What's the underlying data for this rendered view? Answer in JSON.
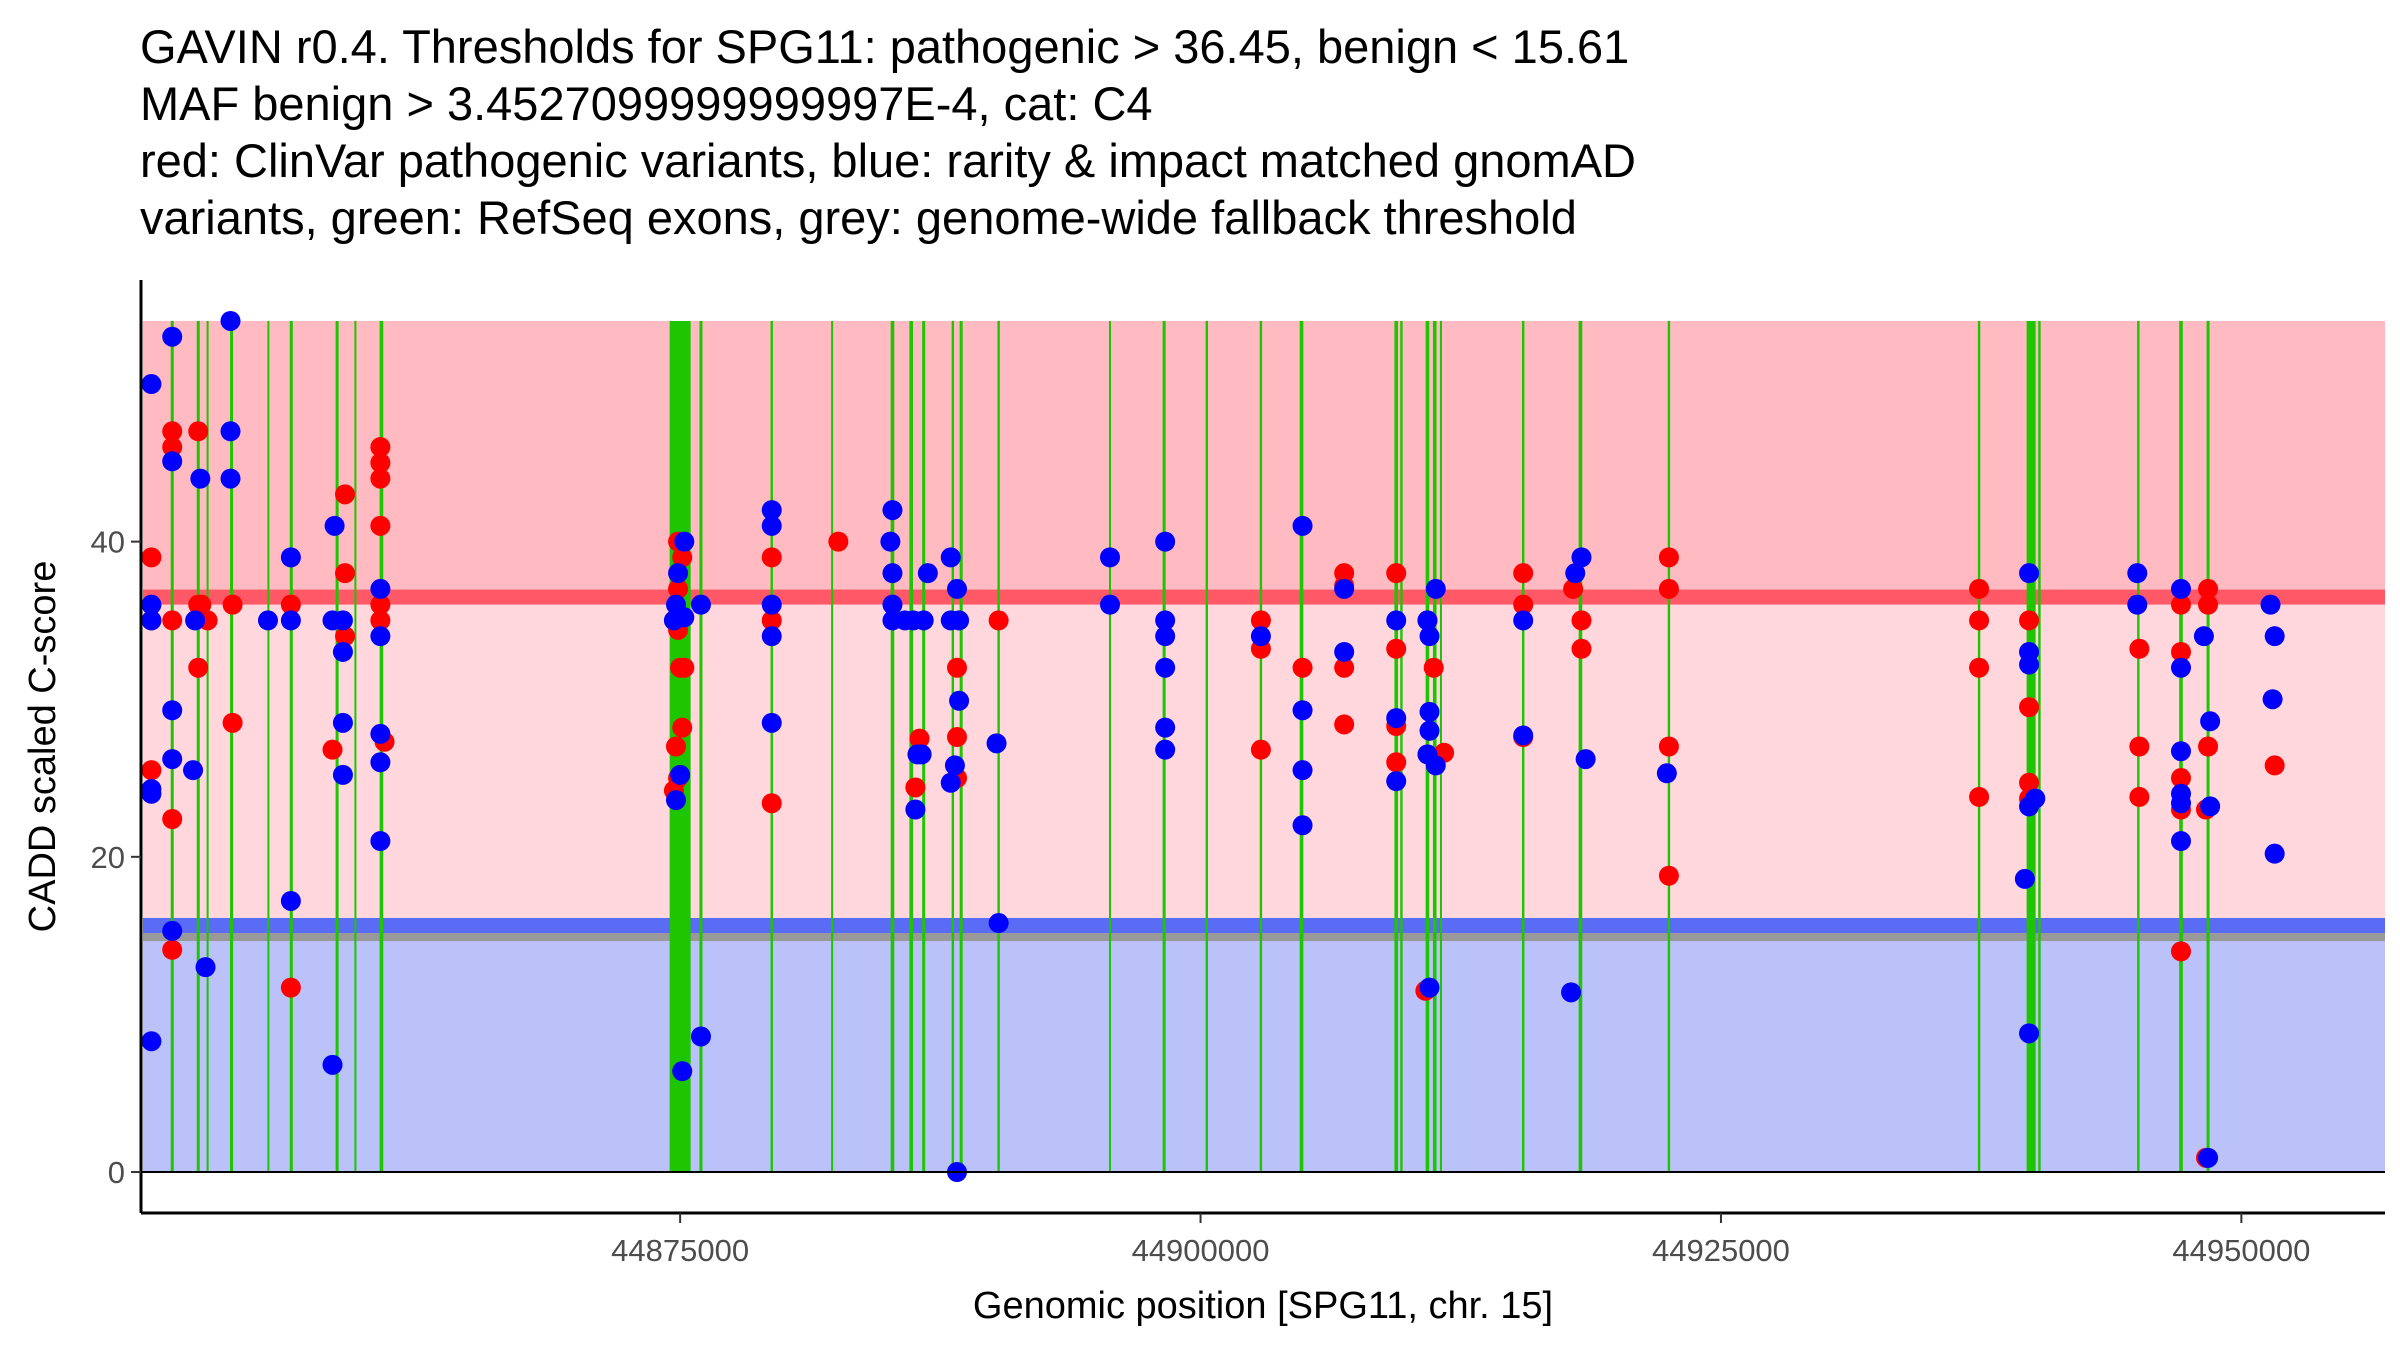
{
  "chart_data": {
    "type": "scatter",
    "title_lines": [
      "GAVIN r0.4. Thresholds for SPG11: pathogenic > 36.45, benign < 15.61",
      "MAF benign > 3.4527099999999997E-4, cat: C4",
      "red: ClinVar pathogenic variants, blue: rarity & impact matched gnomAD",
      "variants, green: RefSeq exons, grey: genome-wide fallback threshold"
    ],
    "xlabel": "Genomic position [SPG11, chr. 15]",
    "ylabel": "CADD scaled C-score",
    "xlim": [
      44849100,
      44956900
    ],
    "ylim": [
      -2.6,
      56.6
    ],
    "x_ticks": [
      44875000,
      44900000,
      44925000,
      44950000
    ],
    "x_tick_labels": [
      "44875000",
      "44900000",
      "44925000",
      "44950000"
    ],
    "y_ticks": [
      0,
      20,
      40
    ],
    "y_tick_labels": [
      "0",
      "20",
      "40"
    ],
    "grid": false,
    "legend": "none",
    "thresholds": {
      "pathogenic": 36.45,
      "benign": 15.61,
      "genome_wide_fallback": 14.8,
      "pathogenic_zone_top": 54.0
    },
    "colors": {
      "pathogenic_zone": "#FFBBC1",
      "pathogenic_line": "#FF5867",
      "middle_zone": "#FFD7DC",
      "benign_line": "#5A6BF5",
      "fallback_line": "#999999",
      "benign_zone": "#BBC1F9",
      "exon": "#1DC600",
      "clinvar": "#FF0000",
      "gnomad": "#0000FF"
    },
    "exons": [
      {
        "pos": 44850600,
        "w": 1
      },
      {
        "pos": 44851850,
        "w": 1
      },
      {
        "pos": 44852300,
        "w": 0.6
      },
      {
        "pos": 44853450,
        "w": 1
      },
      {
        "pos": 44855220,
        "w": 0.5
      },
      {
        "pos": 44856320,
        "w": 1
      },
      {
        "pos": 44858520,
        "w": 1
      },
      {
        "pos": 44859400,
        "w": 0.6
      },
      {
        "pos": 44860650,
        "w": 1.2
      },
      {
        "pos": 44875000,
        "w": 7
      },
      {
        "pos": 44876000,
        "w": 1
      },
      {
        "pos": 44879400,
        "w": 0.8
      },
      {
        "pos": 44882300,
        "w": 0.6
      },
      {
        "pos": 44885200,
        "w": 1.2
      },
      {
        "pos": 44886100,
        "w": 1.2
      },
      {
        "pos": 44886700,
        "w": 1
      },
      {
        "pos": 44888100,
        "w": 0.8
      },
      {
        "pos": 44888500,
        "w": 1
      },
      {
        "pos": 44890300,
        "w": 0.8
      },
      {
        "pos": 44895650,
        "w": 0.6
      },
      {
        "pos": 44898250,
        "w": 1
      },
      {
        "pos": 44900300,
        "w": 0.8
      },
      {
        "pos": 44902900,
        "w": 0.8
      },
      {
        "pos": 44904850,
        "w": 1.2
      },
      {
        "pos": 44909400,
        "w": 1.2
      },
      {
        "pos": 44909650,
        "w": 0.8
      },
      {
        "pos": 44910900,
        "w": 1.2
      },
      {
        "pos": 44911250,
        "w": 1.2
      },
      {
        "pos": 44911550,
        "w": 0.5
      },
      {
        "pos": 44915500,
        "w": 0.8
      },
      {
        "pos": 44918250,
        "w": 1.2
      },
      {
        "pos": 44922500,
        "w": 0.8
      },
      {
        "pos": 44937400,
        "w": 0.8
      },
      {
        "pos": 44939900,
        "w": 3
      },
      {
        "pos": 44940300,
        "w": 0.8
      },
      {
        "pos": 44945050,
        "w": 0.8
      },
      {
        "pos": 44947100,
        "w": 1.2
      },
      {
        "pos": 44948400,
        "w": 1
      }
    ],
    "series": [
      {
        "name": "ClinVar pathogenic variants",
        "color": "#FF0000",
        "points": [
          [
            44849600,
            39
          ],
          [
            44849600,
            35
          ],
          [
            44849600,
            25.5
          ],
          [
            44850600,
            47
          ],
          [
            44850600,
            46
          ],
          [
            44850600,
            35
          ],
          [
            44850600,
            22.4
          ],
          [
            44850600,
            14.1
          ],
          [
            44851850,
            47
          ],
          [
            44851850,
            36
          ],
          [
            44851850,
            32
          ],
          [
            44852000,
            36
          ],
          [
            44852300,
            35
          ],
          [
            44853500,
            36
          ],
          [
            44853500,
            28.5
          ],
          [
            44856300,
            36
          ],
          [
            44856300,
            11.7
          ],
          [
            44858300,
            26.8
          ],
          [
            44858900,
            43
          ],
          [
            44858900,
            38
          ],
          [
            44858900,
            34
          ],
          [
            44860600,
            46
          ],
          [
            44860600,
            45
          ],
          [
            44860600,
            44
          ],
          [
            44860600,
            41
          ],
          [
            44860600,
            36
          ],
          [
            44860600,
            35
          ],
          [
            44860800,
            27.3
          ],
          [
            44874900,
            40
          ],
          [
            44875100,
            39
          ],
          [
            44874900,
            37
          ],
          [
            44874800,
            35
          ],
          [
            44874900,
            34.4
          ],
          [
            44875000,
            32
          ],
          [
            44875100,
            28.2
          ],
          [
            44874800,
            27
          ],
          [
            44874900,
            25
          ],
          [
            44874700,
            24.2
          ],
          [
            44875200,
            32
          ],
          [
            44879400,
            39
          ],
          [
            44879400,
            35
          ],
          [
            44879400,
            23.4
          ],
          [
            44882600,
            40
          ],
          [
            44886500,
            27.5
          ],
          [
            44886300,
            24.4
          ],
          [
            44888300,
            32
          ],
          [
            44888300,
            27.6
          ],
          [
            44888300,
            25
          ],
          [
            44890300,
            35
          ],
          [
            44902900,
            35
          ],
          [
            44902900,
            33.2
          ],
          [
            44902900,
            26.8
          ],
          [
            44904900,
            32
          ],
          [
            44906900,
            38
          ],
          [
            44906900,
            37.2
          ],
          [
            44906900,
            32
          ],
          [
            44906900,
            28.4
          ],
          [
            44909400,
            38
          ],
          [
            44909400,
            33.2
          ],
          [
            44909400,
            28.3
          ],
          [
            44909400,
            26
          ],
          [
            44910900,
            35
          ],
          [
            44911200,
            32
          ],
          [
            44911300,
            26.2
          ],
          [
            44911700,
            26.6
          ],
          [
            44910800,
            11.5
          ],
          [
            44915500,
            38
          ],
          [
            44915500,
            36
          ],
          [
            44915500,
            27.6
          ],
          [
            44917900,
            37
          ],
          [
            44918300,
            35
          ],
          [
            44918300,
            33.2
          ],
          [
            44922500,
            39
          ],
          [
            44922500,
            37
          ],
          [
            44922500,
            27
          ],
          [
            44922500,
            18.8
          ],
          [
            44937400,
            37
          ],
          [
            44937400,
            35
          ],
          [
            44937400,
            32
          ],
          [
            44937400,
            23.8
          ],
          [
            44939800,
            35
          ],
          [
            44939800,
            29.5
          ],
          [
            44939800,
            24.7
          ],
          [
            44939800,
            23.7
          ],
          [
            44945100,
            33.2
          ],
          [
            44945100,
            27
          ],
          [
            44945100,
            23.8
          ],
          [
            44947100,
            36
          ],
          [
            44947100,
            33
          ],
          [
            44947100,
            25
          ],
          [
            44947100,
            23
          ],
          [
            44947100,
            14
          ],
          [
            44948400,
            37
          ],
          [
            44948400,
            36
          ],
          [
            44948400,
            27
          ],
          [
            44948300,
            23
          ],
          [
            44948300,
            0.9
          ],
          [
            44951600,
            25.8
          ]
        ]
      },
      {
        "name": "rarity & impact matched gnomAD variants",
        "color": "#0000FF",
        "points": [
          [
            44849600,
            50
          ],
          [
            44849600,
            36
          ],
          [
            44849600,
            35
          ],
          [
            44849600,
            24.3
          ],
          [
            44849600,
            24
          ],
          [
            44849600,
            8.3
          ],
          [
            44850600,
            53
          ],
          [
            44850600,
            45.1
          ],
          [
            44850600,
            29.3
          ],
          [
            44850600,
            26.2
          ],
          [
            44850600,
            15.3
          ],
          [
            44851700,
            35
          ],
          [
            44851600,
            25.5
          ],
          [
            44851950,
            44
          ],
          [
            44852200,
            13
          ],
          [
            44853400,
            54
          ],
          [
            44853400,
            47
          ],
          [
            44853400,
            44
          ],
          [
            44855200,
            35
          ],
          [
            44856300,
            39
          ],
          [
            44856300,
            35
          ],
          [
            44856300,
            17.2
          ],
          [
            44858400,
            41
          ],
          [
            44858300,
            35
          ],
          [
            44858300,
            6.8
          ],
          [
            44858800,
            35
          ],
          [
            44858800,
            33
          ],
          [
            44858800,
            28.5
          ],
          [
            44858800,
            25.2
          ],
          [
            44860600,
            37
          ],
          [
            44860600,
            34
          ],
          [
            44860600,
            27.8
          ],
          [
            44860600,
            26
          ],
          [
            44860600,
            21
          ],
          [
            44874800,
            36
          ],
          [
            44874700,
            35
          ],
          [
            44874900,
            38
          ],
          [
            44875200,
            40
          ],
          [
            44875200,
            35.2
          ],
          [
            44875000,
            25.2
          ],
          [
            44874800,
            23.6
          ],
          [
            44875100,
            6.4
          ],
          [
            44876000,
            36
          ],
          [
            44876000,
            8.6
          ],
          [
            44879400,
            42
          ],
          [
            44879400,
            41
          ],
          [
            44879400,
            36
          ],
          [
            44879400,
            34
          ],
          [
            44879400,
            28.5
          ],
          [
            44885200,
            42
          ],
          [
            44885100,
            40
          ],
          [
            44885200,
            38
          ],
          [
            44885200,
            36
          ],
          [
            44885200,
            35
          ],
          [
            44885800,
            35
          ],
          [
            44886200,
            35
          ],
          [
            44886400,
            26.5
          ],
          [
            44886600,
            26.5
          ],
          [
            44886300,
            23
          ],
          [
            44886700,
            35
          ],
          [
            44886900,
            38
          ],
          [
            44888000,
            39
          ],
          [
            44888300,
            37
          ],
          [
            44888000,
            35
          ],
          [
            44888400,
            35
          ],
          [
            44888400,
            29.9
          ],
          [
            44888000,
            24.7
          ],
          [
            44888200,
            25.8
          ],
          [
            44888300,
            0
          ],
          [
            44890200,
            27.2
          ],
          [
            44890300,
            15.8
          ],
          [
            44895650,
            39
          ],
          [
            44895650,
            36
          ],
          [
            44898300,
            40
          ],
          [
            44898300,
            35
          ],
          [
            44898300,
            34
          ],
          [
            44898300,
            32
          ],
          [
            44898300,
            28.2
          ],
          [
            44898300,
            26.8
          ],
          [
            44902900,
            34
          ],
          [
            44904900,
            41
          ],
          [
            44904900,
            29.3
          ],
          [
            44904900,
            25.5
          ],
          [
            44904900,
            22
          ],
          [
            44906900,
            37
          ],
          [
            44906900,
            33
          ],
          [
            44909400,
            35
          ],
          [
            44909400,
            28.8
          ],
          [
            44909400,
            24.8
          ],
          [
            44910900,
            35
          ],
          [
            44911000,
            34
          ],
          [
            44911300,
            37
          ],
          [
            44911000,
            29.2
          ],
          [
            44911000,
            28
          ],
          [
            44910900,
            26.5
          ],
          [
            44911300,
            25.8
          ],
          [
            44911000,
            11.7
          ],
          [
            44915500,
            35
          ],
          [
            44915500,
            27.7
          ],
          [
            44918000,
            38
          ],
          [
            44918300,
            39
          ],
          [
            44917800,
            11.4
          ],
          [
            44918500,
            26.2
          ],
          [
            44922400,
            25.3
          ],
          [
            44939800,
            38
          ],
          [
            44939800,
            33
          ],
          [
            44939800,
            32.2
          ],
          [
            44939600,
            18.6
          ],
          [
            44940100,
            23.7
          ],
          [
            44939800,
            23.2
          ],
          [
            44939800,
            8.8
          ],
          [
            44945000,
            38
          ],
          [
            44945000,
            36
          ],
          [
            44947100,
            37
          ],
          [
            44947100,
            32
          ],
          [
            44947100,
            26.7
          ],
          [
            44947100,
            24
          ],
          [
            44947100,
            23.4
          ],
          [
            44947100,
            21
          ],
          [
            44948200,
            34
          ],
          [
            44948500,
            28.6
          ],
          [
            44948500,
            23.2
          ],
          [
            44948400,
            0.9
          ],
          [
            44951400,
            36
          ],
          [
            44951600,
            34
          ],
          [
            44951500,
            30
          ],
          [
            44951600,
            20.2
          ]
        ]
      }
    ]
  }
}
